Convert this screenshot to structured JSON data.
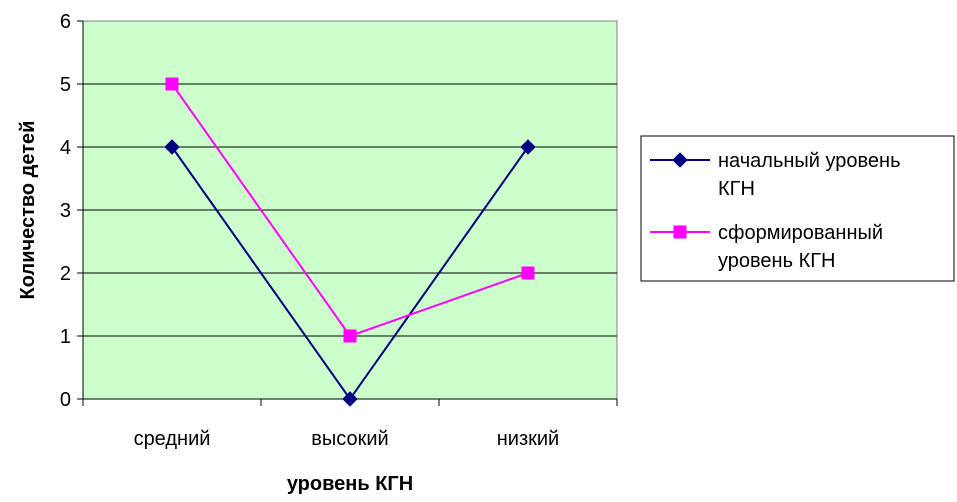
{
  "chart_data": {
    "type": "line",
    "title": "",
    "xlabel": "уровень КГН",
    "ylabel": "Количество детей",
    "categories": [
      "средний",
      "высокий",
      "низкий"
    ],
    "ylim": [
      0,
      6
    ],
    "yticks": [
      "0",
      "1",
      "2",
      "3",
      "4",
      "5",
      "6"
    ],
    "grid": true,
    "plot_background": "#ccffcc",
    "legend_position": "right",
    "series": [
      {
        "name": "начальный уровень КГН",
        "name_lines": [
          "начальный уровень",
          "КГН"
        ],
        "values": [
          4,
          0,
          4
        ],
        "color": "#000080",
        "marker": "diamond"
      },
      {
        "name": "сформированный уровень КГН",
        "name_lines": [
          "сформированный",
          "уровень КГН"
        ],
        "values": [
          5,
          1,
          2
        ],
        "color": "#ff00ff",
        "marker": "square"
      }
    ]
  }
}
